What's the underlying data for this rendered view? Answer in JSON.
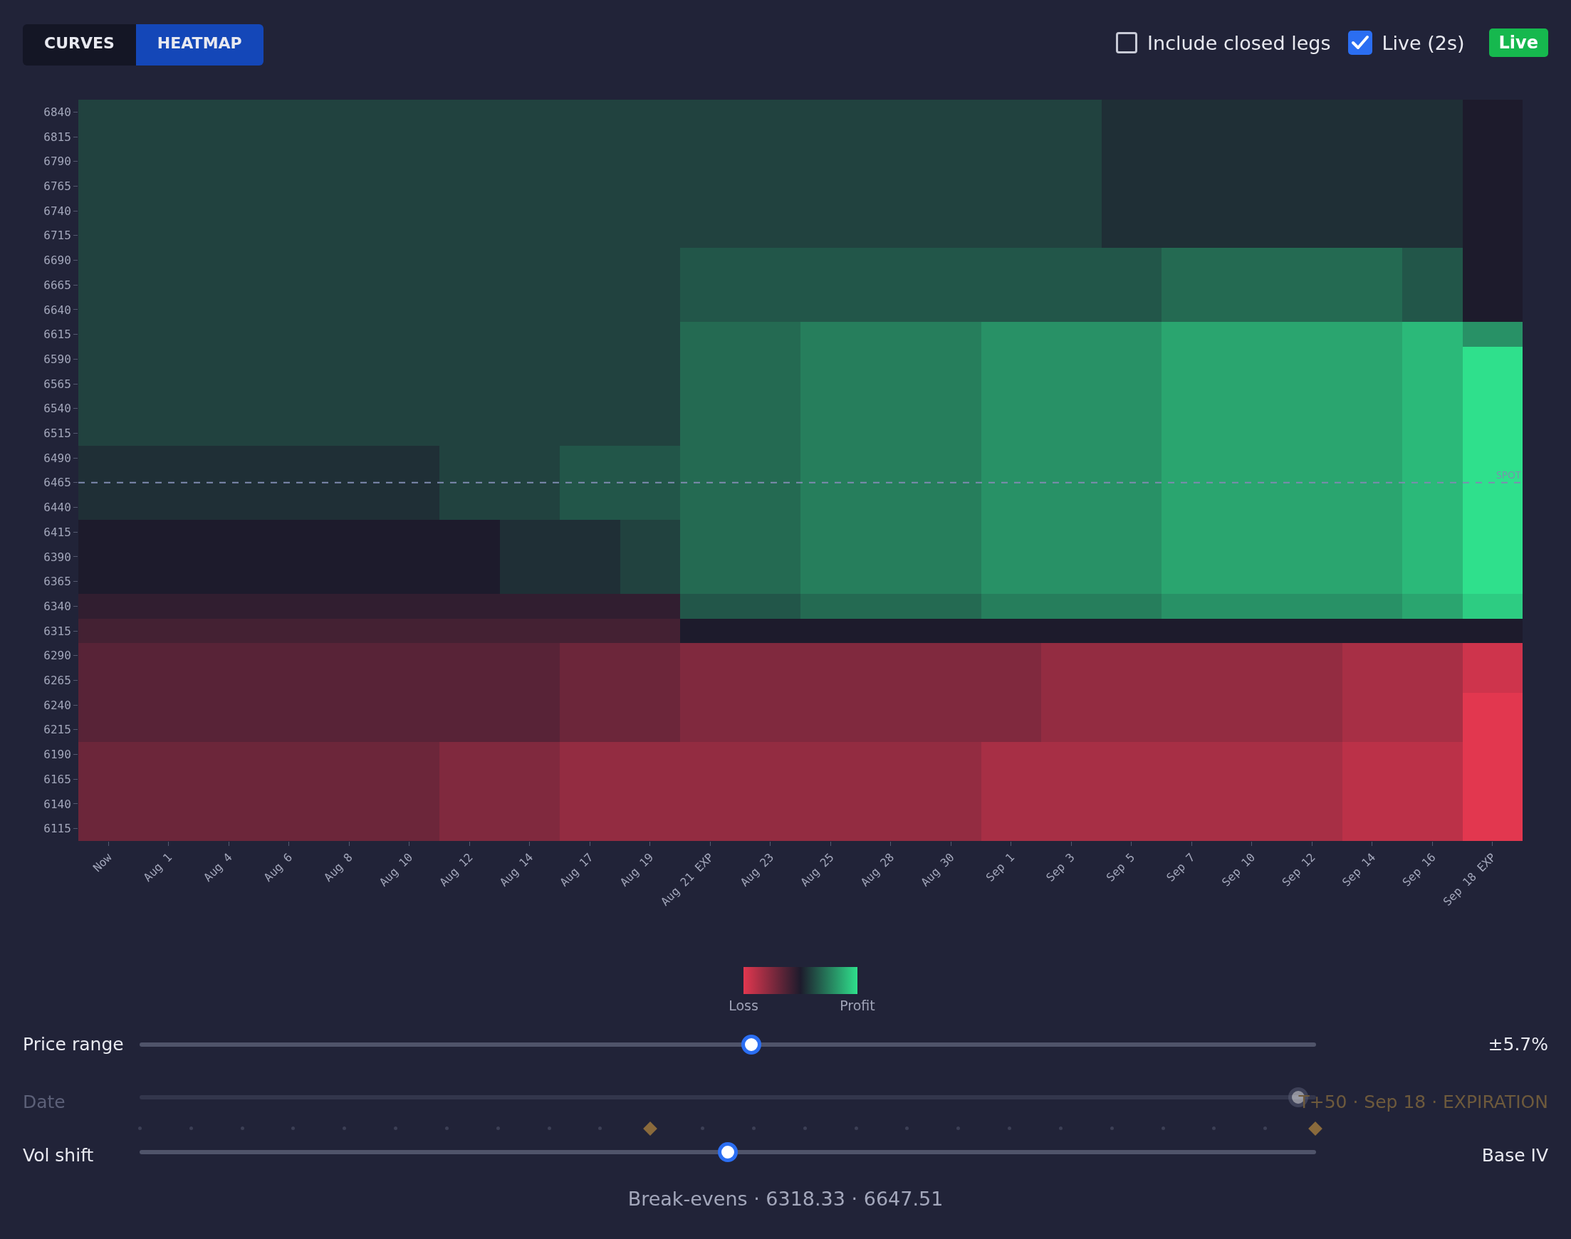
{
  "chart_data": {
    "type": "heatmap",
    "categories": [
      "Now",
      "Aug 1",
      "Aug 4",
      "Aug 6",
      "Aug 8",
      "Aug 10",
      "Aug 12",
      "Aug 14",
      "Aug 17",
      "Aug 19",
      "Aug 21 EXP",
      "Aug 23",
      "Aug 25",
      "Aug 28",
      "Aug 30",
      "Sep 1",
      "Sep 3",
      "Sep 5",
      "Sep 7",
      "Sep 10",
      "Sep 12",
      "Sep 14",
      "Sep 16",
      "Sep 18 EXP"
    ],
    "y_categories": [
      "6840",
      "6815",
      "6790",
      "6765",
      "6740",
      "6715",
      "6690",
      "6665",
      "6640",
      "6615",
      "6590",
      "6565",
      "6540",
      "6515",
      "6490",
      "6465",
      "6440",
      "6415",
      "6390",
      "6365",
      "6340",
      "6315",
      "6290",
      "6265",
      "6240",
      "6215",
      "6190",
      "6165",
      "6140",
      "6115"
    ],
    "cells": [
      [
        0.2,
        0.2,
        0.2,
        0.2,
        0.2,
        0.2,
        0.2,
        0.2,
        0.2,
        0.2,
        0.2,
        0.2,
        0.2,
        0.2,
        0.2,
        0.2,
        0.2,
        0.1,
        0.1,
        0.1,
        0.1,
        0.1,
        0.1,
        0.0
      ],
      [
        0.2,
        0.2,
        0.2,
        0.2,
        0.2,
        0.2,
        0.2,
        0.2,
        0.2,
        0.2,
        0.2,
        0.2,
        0.2,
        0.2,
        0.2,
        0.2,
        0.2,
        0.1,
        0.1,
        0.1,
        0.1,
        0.1,
        0.1,
        0.0
      ],
      [
        0.2,
        0.2,
        0.2,
        0.2,
        0.2,
        0.2,
        0.2,
        0.2,
        0.2,
        0.2,
        0.2,
        0.2,
        0.2,
        0.2,
        0.2,
        0.2,
        0.2,
        0.1,
        0.1,
        0.1,
        0.1,
        0.1,
        0.1,
        0.0
      ],
      [
        0.2,
        0.2,
        0.2,
        0.2,
        0.2,
        0.2,
        0.2,
        0.2,
        0.2,
        0.2,
        0.2,
        0.2,
        0.2,
        0.2,
        0.2,
        0.2,
        0.2,
        0.1,
        0.1,
        0.1,
        0.1,
        0.1,
        0.1,
        0.0
      ],
      [
        0.2,
        0.2,
        0.2,
        0.2,
        0.2,
        0.2,
        0.2,
        0.2,
        0.2,
        0.2,
        0.2,
        0.2,
        0.2,
        0.2,
        0.2,
        0.2,
        0.2,
        0.1,
        0.1,
        0.1,
        0.1,
        0.1,
        0.1,
        0.0
      ],
      [
        0.2,
        0.2,
        0.2,
        0.2,
        0.2,
        0.2,
        0.2,
        0.2,
        0.2,
        0.2,
        0.2,
        0.2,
        0.2,
        0.2,
        0.2,
        0.2,
        0.2,
        0.1,
        0.1,
        0.1,
        0.1,
        0.1,
        0.1,
        0.0
      ],
      [
        0.2,
        0.2,
        0.2,
        0.2,
        0.2,
        0.2,
        0.2,
        0.2,
        0.2,
        0.2,
        0.3,
        0.3,
        0.3,
        0.3,
        0.3,
        0.3,
        0.3,
        0.3,
        0.4,
        0.4,
        0.4,
        0.4,
        0.3,
        0.0
      ],
      [
        0.2,
        0.2,
        0.2,
        0.2,
        0.2,
        0.2,
        0.2,
        0.2,
        0.2,
        0.2,
        0.3,
        0.3,
        0.3,
        0.3,
        0.3,
        0.3,
        0.3,
        0.3,
        0.4,
        0.4,
        0.4,
        0.4,
        0.3,
        0.0
      ],
      [
        0.2,
        0.2,
        0.2,
        0.2,
        0.2,
        0.2,
        0.2,
        0.2,
        0.2,
        0.2,
        0.3,
        0.3,
        0.3,
        0.3,
        0.3,
        0.3,
        0.3,
        0.3,
        0.4,
        0.4,
        0.4,
        0.4,
        0.3,
        0.0
      ],
      [
        0.2,
        0.2,
        0.2,
        0.2,
        0.2,
        0.2,
        0.2,
        0.2,
        0.2,
        0.2,
        0.4,
        0.4,
        0.5,
        0.5,
        0.5,
        0.6,
        0.6,
        0.6,
        0.7,
        0.7,
        0.7,
        0.7,
        0.8,
        0.6
      ],
      [
        0.2,
        0.2,
        0.2,
        0.2,
        0.2,
        0.2,
        0.2,
        0.2,
        0.2,
        0.2,
        0.4,
        0.4,
        0.5,
        0.5,
        0.5,
        0.6,
        0.6,
        0.6,
        0.7,
        0.7,
        0.7,
        0.7,
        0.8,
        1.0
      ],
      [
        0.2,
        0.2,
        0.2,
        0.2,
        0.2,
        0.2,
        0.2,
        0.2,
        0.2,
        0.2,
        0.4,
        0.4,
        0.5,
        0.5,
        0.5,
        0.6,
        0.6,
        0.6,
        0.7,
        0.7,
        0.7,
        0.7,
        0.8,
        1.0
      ],
      [
        0.2,
        0.2,
        0.2,
        0.2,
        0.2,
        0.2,
        0.2,
        0.2,
        0.2,
        0.2,
        0.4,
        0.4,
        0.5,
        0.5,
        0.5,
        0.6,
        0.6,
        0.6,
        0.7,
        0.7,
        0.7,
        0.7,
        0.8,
        1.0
      ],
      [
        0.2,
        0.2,
        0.2,
        0.2,
        0.2,
        0.2,
        0.2,
        0.2,
        0.2,
        0.2,
        0.4,
        0.4,
        0.5,
        0.5,
        0.5,
        0.6,
        0.6,
        0.6,
        0.7,
        0.7,
        0.7,
        0.7,
        0.8,
        1.0
      ],
      [
        0.1,
        0.1,
        0.1,
        0.1,
        0.1,
        0.1,
        0.2,
        0.2,
        0.3,
        0.3,
        0.4,
        0.4,
        0.5,
        0.5,
        0.5,
        0.6,
        0.6,
        0.6,
        0.7,
        0.7,
        0.7,
        0.7,
        0.8,
        1.0
      ],
      [
        0.1,
        0.1,
        0.1,
        0.1,
        0.1,
        0.1,
        0.2,
        0.2,
        0.3,
        0.3,
        0.4,
        0.4,
        0.5,
        0.5,
        0.5,
        0.6,
        0.6,
        0.6,
        0.7,
        0.7,
        0.7,
        0.7,
        0.8,
        1.0
      ],
      [
        0.1,
        0.1,
        0.1,
        0.1,
        0.1,
        0.1,
        0.2,
        0.2,
        0.3,
        0.3,
        0.4,
        0.4,
        0.5,
        0.5,
        0.5,
        0.6,
        0.6,
        0.6,
        0.7,
        0.7,
        0.7,
        0.7,
        0.8,
        1.0
      ],
      [
        0.0,
        0.0,
        0.0,
        0.0,
        0.0,
        0.0,
        0.0,
        0.1,
        0.1,
        0.2,
        0.4,
        0.4,
        0.5,
        0.5,
        0.5,
        0.6,
        0.6,
        0.6,
        0.7,
        0.7,
        0.7,
        0.7,
        0.8,
        1.0
      ],
      [
        0.0,
        0.0,
        0.0,
        0.0,
        0.0,
        0.0,
        0.0,
        0.1,
        0.1,
        0.2,
        0.4,
        0.4,
        0.5,
        0.5,
        0.5,
        0.6,
        0.6,
        0.6,
        0.7,
        0.7,
        0.7,
        0.7,
        0.8,
        1.0
      ],
      [
        0.0,
        0.0,
        0.0,
        0.0,
        0.0,
        0.0,
        0.0,
        0.1,
        0.1,
        0.2,
        0.4,
        0.4,
        0.5,
        0.5,
        0.5,
        0.6,
        0.6,
        0.6,
        0.7,
        0.7,
        0.7,
        0.7,
        0.8,
        1.0
      ],
      [
        -0.1,
        -0.1,
        -0.1,
        -0.1,
        -0.1,
        -0.1,
        -0.1,
        -0.1,
        -0.1,
        -0.1,
        0.3,
        0.3,
        0.4,
        0.4,
        0.4,
        0.5,
        0.5,
        0.5,
        0.6,
        0.6,
        0.6,
        0.6,
        0.7,
        0.9
      ],
      [
        -0.2,
        -0.2,
        -0.2,
        -0.2,
        -0.2,
        -0.2,
        -0.2,
        -0.2,
        -0.2,
        -0.2,
        0.0,
        0.0,
        0.0,
        0.0,
        0.0,
        0.0,
        0.0,
        0.0,
        0.0,
        0.0,
        0.0,
        0.0,
        0.0,
        0.0
      ],
      [
        -0.3,
        -0.3,
        -0.3,
        -0.3,
        -0.3,
        -0.3,
        -0.3,
        -0.3,
        -0.4,
        -0.4,
        -0.5,
        -0.5,
        -0.5,
        -0.5,
        -0.5,
        -0.5,
        -0.6,
        -0.6,
        -0.6,
        -0.6,
        -0.6,
        -0.7,
        -0.7,
        -0.9
      ],
      [
        -0.3,
        -0.3,
        -0.3,
        -0.3,
        -0.3,
        -0.3,
        -0.3,
        -0.3,
        -0.4,
        -0.4,
        -0.5,
        -0.5,
        -0.5,
        -0.5,
        -0.5,
        -0.5,
        -0.6,
        -0.6,
        -0.6,
        -0.6,
        -0.6,
        -0.7,
        -0.7,
        -0.9
      ],
      [
        -0.3,
        -0.3,
        -0.3,
        -0.3,
        -0.3,
        -0.3,
        -0.3,
        -0.3,
        -0.4,
        -0.4,
        -0.5,
        -0.5,
        -0.5,
        -0.5,
        -0.5,
        -0.5,
        -0.6,
        -0.6,
        -0.6,
        -0.6,
        -0.6,
        -0.7,
        -0.7,
        -1.0
      ],
      [
        -0.3,
        -0.3,
        -0.3,
        -0.3,
        -0.3,
        -0.3,
        -0.3,
        -0.3,
        -0.4,
        -0.4,
        -0.5,
        -0.5,
        -0.5,
        -0.5,
        -0.5,
        -0.5,
        -0.6,
        -0.6,
        -0.6,
        -0.6,
        -0.6,
        -0.7,
        -0.7,
        -1.0
      ],
      [
        -0.4,
        -0.4,
        -0.4,
        -0.4,
        -0.4,
        -0.4,
        -0.5,
        -0.5,
        -0.6,
        -0.6,
        -0.6,
        -0.6,
        -0.6,
        -0.6,
        -0.6,
        -0.7,
        -0.7,
        -0.7,
        -0.7,
        -0.7,
        -0.7,
        -0.8,
        -0.8,
        -1.0
      ],
      [
        -0.4,
        -0.4,
        -0.4,
        -0.4,
        -0.4,
        -0.4,
        -0.5,
        -0.5,
        -0.6,
        -0.6,
        -0.6,
        -0.6,
        -0.6,
        -0.6,
        -0.6,
        -0.7,
        -0.7,
        -0.7,
        -0.7,
        -0.7,
        -0.7,
        -0.8,
        -0.8,
        -1.0
      ],
      [
        -0.4,
        -0.4,
        -0.4,
        -0.4,
        -0.4,
        -0.4,
        -0.5,
        -0.5,
        -0.6,
        -0.6,
        -0.6,
        -0.6,
        -0.6,
        -0.6,
        -0.6,
        -0.7,
        -0.7,
        -0.7,
        -0.7,
        -0.7,
        -0.7,
        -0.8,
        -0.8,
        -1.0
      ],
      [
        -0.4,
        -0.4,
        -0.4,
        -0.4,
        -0.4,
        -0.4,
        -0.5,
        -0.5,
        -0.6,
        -0.6,
        -0.6,
        -0.6,
        -0.6,
        -0.6,
        -0.6,
        -0.7,
        -0.7,
        -0.7,
        -0.7,
        -0.7,
        -0.7,
        -0.8,
        -0.8,
        -1.0
      ]
    ],
    "clim": [
      -1,
      1
    ],
    "cticks": [
      {
        "value": -1,
        "label": "Loss"
      },
      {
        "value": 1,
        "label": "Profit"
      }
    ],
    "annotations": [
      "CURVES",
      "HEATMAP",
      "Include closed legs",
      "Live (2s)",
      "Live",
      "Price range",
      "±5.7%",
      "Date",
      "T+50 · Sep 18 · EXPIRATION",
      "Vol shift",
      "Base IV",
      "Break-evens · 6318.33 · 6647.51"
    ],
    "ref_lines": [
      {
        "axis": "y",
        "value": "6465",
        "label": "SPOT",
        "color": "#7f8bb0",
        "line_style": "dashed"
      }
    ]
  }
}
